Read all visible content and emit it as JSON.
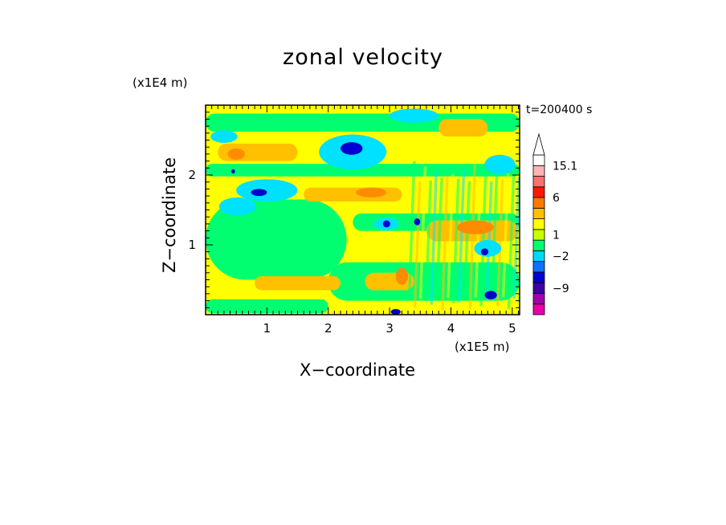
{
  "chart_data": {
    "type": "heatmap",
    "title": "zonal velocity",
    "xlabel": "X−coordinate",
    "ylabel": "Z−coordinate",
    "x_unit": "(x1E5 m)",
    "y_unit": "(x1E4 m)",
    "time_label": "t=200400 s",
    "xlim": [
      0,
      5.12
    ],
    "ylim": [
      0,
      3.0
    ],
    "x_ticks": [
      1,
      2,
      3,
      4,
      5
    ],
    "y_ticks": [
      1,
      2
    ],
    "colorbar": {
      "labels": [
        "15.1",
        "6",
        "1",
        "−2",
        "−9"
      ],
      "colors": [
        "#e800a8",
        "#a000a8",
        "#4000a0",
        "#0000d0",
        "#1070ff",
        "#00d8ff",
        "#00ff70",
        "#c8ff00",
        "#ffff00",
        "#ffc000",
        "#ff7800",
        "#ff1800",
        "#ff7070",
        "#ffb4b4",
        "#ffffff"
      ],
      "extend_max": true
    },
    "field_features": {
      "background": "#ffff00",
      "colors": {
        "orange": "#ffc000",
        "dark_orange": "#ff8c00",
        "green": "#00ff70",
        "cyan": "#00e0ff",
        "blue": "#1070ff",
        "dark_blue": "#0000d0"
      },
      "bands": [
        {
          "kind": "green",
          "x": [
            0.0,
            5.12
          ],
          "z": [
            2.62,
            2.88
          ]
        },
        {
          "kind": "green",
          "x": [
            0.0,
            5.12
          ],
          "z": [
            1.98,
            2.16
          ]
        },
        {
          "kind": "green",
          "x": [
            0.0,
            2.3
          ],
          "z": [
            0.5,
            1.65
          ]
        },
        {
          "kind": "green",
          "x": [
            2.4,
            5.12
          ],
          "z": [
            1.2,
            1.45
          ]
        },
        {
          "kind": "green",
          "x": [
            0.0,
            2.0
          ],
          "z": [
            0.02,
            0.22
          ]
        },
        {
          "kind": "green",
          "x": [
            2.0,
            5.12
          ],
          "z": [
            0.2,
            0.75
          ]
        },
        {
          "kind": "orange",
          "x": [
            0.2,
            1.5
          ],
          "z": [
            2.2,
            2.45
          ]
        },
        {
          "kind": "orange",
          "x": [
            1.6,
            3.2
          ],
          "z": [
            1.62,
            1.82
          ]
        },
        {
          "kind": "orange",
          "x": [
            3.6,
            5.1
          ],
          "z": [
            1.05,
            1.35
          ]
        },
        {
          "kind": "orange",
          "x": [
            0.8,
            2.2
          ],
          "z": [
            0.35,
            0.55
          ]
        },
        {
          "kind": "orange",
          "x": [
            2.6,
            3.4
          ],
          "z": [
            0.35,
            0.6
          ]
        },
        {
          "kind": "orange",
          "x": [
            3.8,
            4.6
          ],
          "z": [
            2.55,
            2.8
          ]
        }
      ],
      "blobs": [
        {
          "kind": "cyan",
          "cx": 2.4,
          "cz": 2.33,
          "rx": 0.55,
          "rz": 0.25
        },
        {
          "kind": "dark_blue",
          "cx": 2.38,
          "cz": 2.38,
          "rx": 0.18,
          "rz": 0.09
        },
        {
          "kind": "cyan",
          "cx": 1.0,
          "cz": 1.78,
          "rx": 0.5,
          "rz": 0.16
        },
        {
          "kind": "dark_blue",
          "cx": 0.87,
          "cz": 1.75,
          "rx": 0.13,
          "rz": 0.05
        },
        {
          "kind": "cyan",
          "cx": 0.52,
          "cz": 1.55,
          "rx": 0.3,
          "rz": 0.13
        },
        {
          "kind": "cyan",
          "cx": 0.3,
          "cz": 2.55,
          "rx": 0.22,
          "rz": 0.09
        },
        {
          "kind": "cyan",
          "cx": 4.8,
          "cz": 2.15,
          "rx": 0.25,
          "rz": 0.14
        },
        {
          "kind": "cyan",
          "cx": 3.4,
          "cz": 2.85,
          "rx": 0.4,
          "rz": 0.1
        },
        {
          "kind": "cyan",
          "cx": 2.95,
          "cz": 1.3,
          "rx": 0.2,
          "rz": 0.09
        },
        {
          "kind": "cyan",
          "cx": 4.6,
          "cz": 0.95,
          "rx": 0.22,
          "rz": 0.12
        },
        {
          "kind": "dark_blue",
          "cx": 4.55,
          "cz": 0.9,
          "rx": 0.06,
          "rz": 0.05
        },
        {
          "kind": "dark_blue",
          "cx": 3.45,
          "cz": 1.33,
          "rx": 0.05,
          "rz": 0.05
        },
        {
          "kind": "dark_blue",
          "cx": 2.95,
          "cz": 1.3,
          "rx": 0.06,
          "rz": 0.05
        },
        {
          "kind": "dark_blue",
          "cx": 0.45,
          "cz": 2.05,
          "rx": 0.03,
          "rz": 0.03
        },
        {
          "kind": "dark_blue",
          "cx": 4.65,
          "cz": 0.28,
          "rx": 0.1,
          "rz": 0.06
        },
        {
          "kind": "dark_blue",
          "cx": 3.1,
          "cz": 0.04,
          "rx": 0.08,
          "rz": 0.04
        },
        {
          "kind": "dark_orange",
          "cx": 0.5,
          "cz": 2.3,
          "rx": 0.14,
          "rz": 0.08
        },
        {
          "kind": "dark_orange",
          "cx": 4.4,
          "cz": 1.25,
          "rx": 0.3,
          "rz": 0.1
        },
        {
          "kind": "dark_orange",
          "cx": 3.2,
          "cz": 0.55,
          "rx": 0.1,
          "rz": 0.12
        },
        {
          "kind": "dark_orange",
          "cx": 2.7,
          "cz": 1.75,
          "rx": 0.25,
          "rz": 0.07
        }
      ],
      "streak_regions": [
        {
          "x": [
            3.3,
            5.1
          ],
          "z": [
            0.05,
            2.2
          ]
        }
      ]
    }
  }
}
